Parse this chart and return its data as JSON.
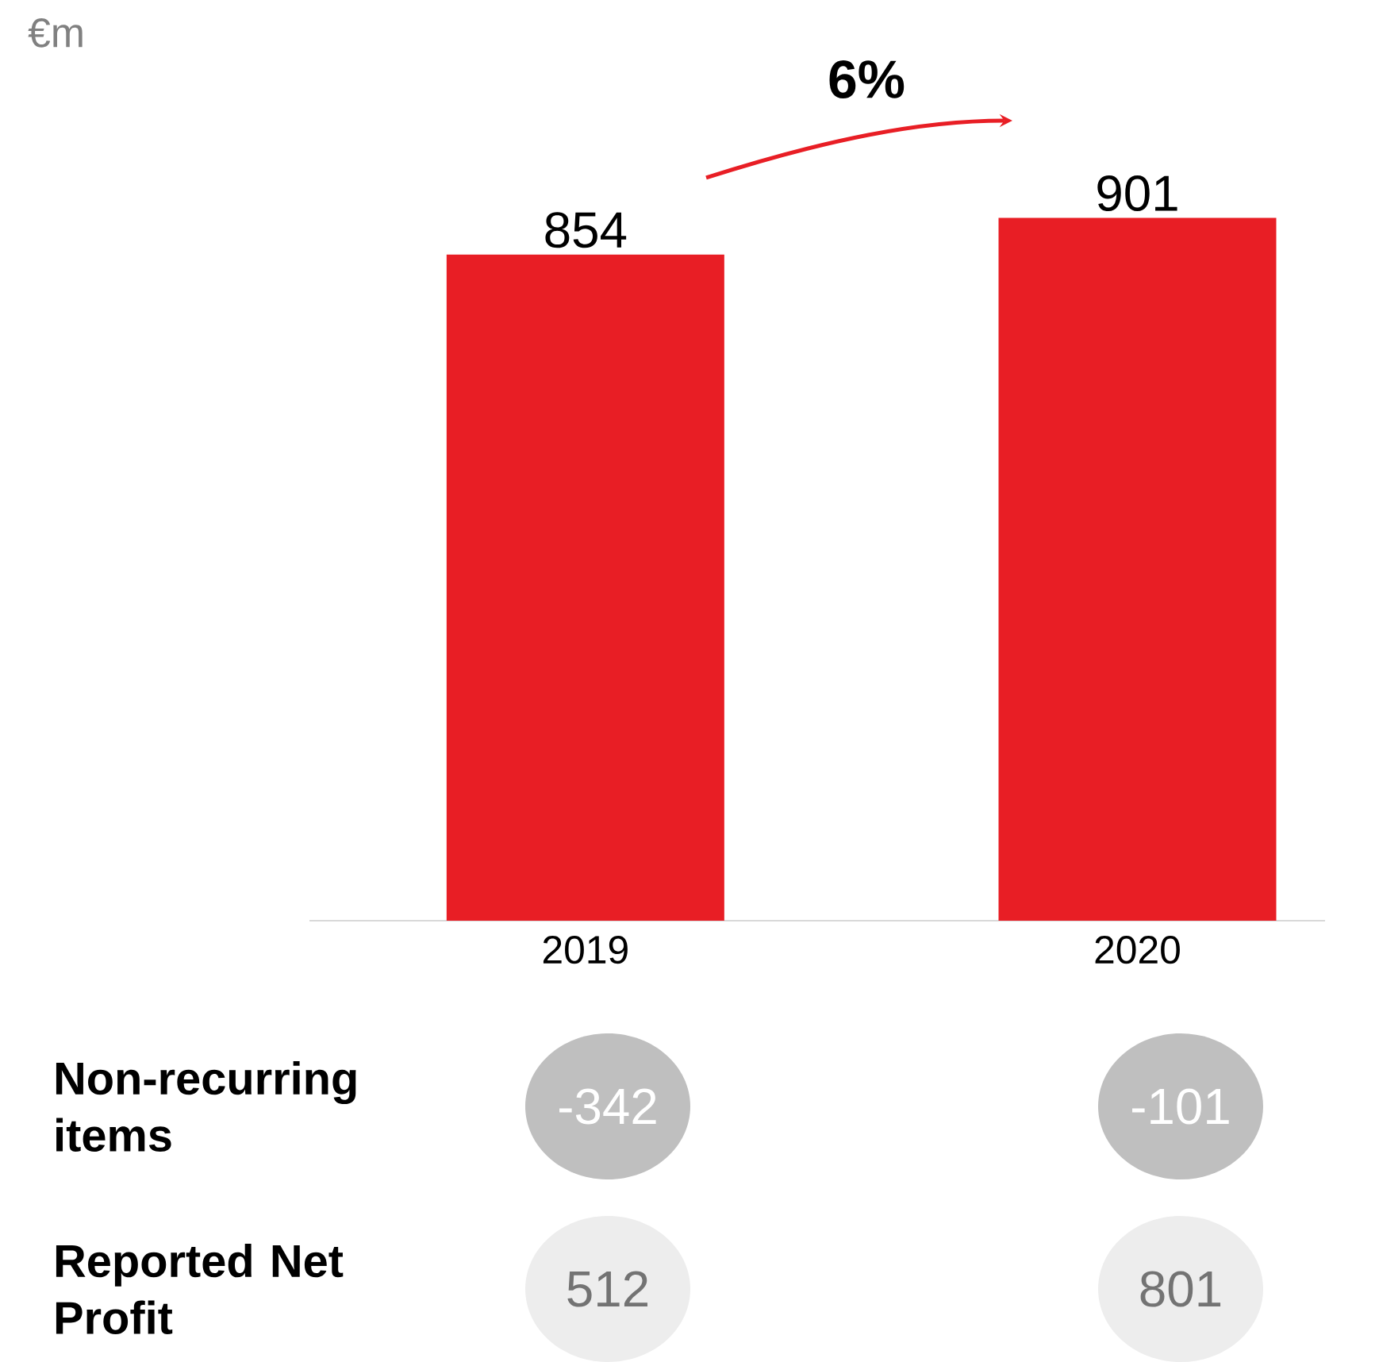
{
  "chart_data": {
    "type": "bar",
    "categories": [
      "2019",
      "2020"
    ],
    "values": [
      854,
      901
    ],
    "color": "#e81e25",
    "data_labels": true,
    "annotations": [
      "€m",
      "6%",
      "Non-recurring items",
      "-342",
      "-101",
      "Reported Net Profit",
      "512",
      "801"
    ]
  }
}
